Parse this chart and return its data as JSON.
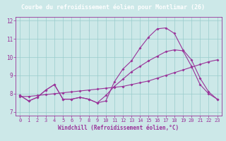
{
  "title": "Courbe du refroidissement éolien pour Montlimar (26)",
  "xlabel": "Windchill (Refroidissement éolien,°C)",
  "bg_color": "#cce8e8",
  "line_color": "#993399",
  "x": [
    0,
    1,
    2,
    3,
    4,
    5,
    6,
    7,
    8,
    9,
    10,
    11,
    12,
    13,
    14,
    15,
    16,
    17,
    18,
    19,
    20,
    21,
    22,
    23
  ],
  "line1": [
    7.9,
    7.6,
    7.8,
    8.2,
    8.5,
    7.7,
    7.7,
    7.8,
    7.7,
    7.5,
    7.6,
    8.65,
    9.35,
    9.8,
    10.5,
    11.1,
    11.55,
    11.6,
    11.3,
    10.4,
    9.85,
    8.85,
    8.1,
    7.7
  ],
  "line2": [
    7.85,
    7.85,
    7.9,
    7.95,
    8.0,
    8.05,
    8.1,
    8.15,
    8.2,
    8.25,
    8.3,
    8.35,
    8.4,
    8.5,
    8.6,
    8.7,
    8.85,
    9.0,
    9.15,
    9.3,
    9.45,
    9.6,
    9.75,
    9.85
  ],
  "line3": [
    7.9,
    7.6,
    7.8,
    8.2,
    8.5,
    7.7,
    7.7,
    7.8,
    7.7,
    7.5,
    7.9,
    8.4,
    8.8,
    9.2,
    9.5,
    9.8,
    10.05,
    10.3,
    10.4,
    10.35,
    9.5,
    8.5,
    8.0,
    7.7
  ],
  "ylim_min": 6.8,
  "ylim_max": 12.2,
  "yticks": [
    7,
    8,
    9,
    10,
    11,
    12
  ],
  "xticks": [
    0,
    1,
    2,
    3,
    4,
    5,
    6,
    7,
    8,
    9,
    10,
    11,
    12,
    13,
    14,
    15,
    16,
    17,
    18,
    19,
    20,
    21,
    22,
    23
  ],
  "grid_color": "#99cccc",
  "title_bg": "#7b2f8c",
  "title_fg": "#ffffff",
  "title_fontsize": 6.0,
  "tick_fontsize": 5.0,
  "xlabel_fontsize": 5.5
}
